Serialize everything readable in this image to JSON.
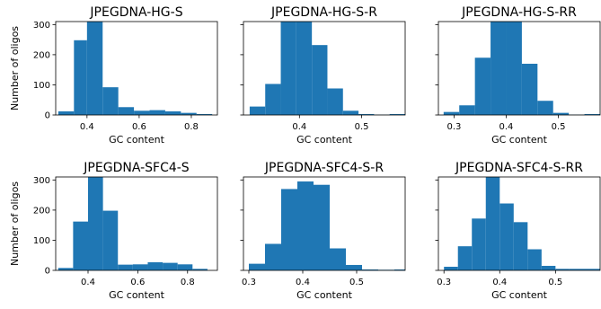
{
  "chart_data": [
    {
      "type": "bar",
      "title": "JPEGDNA-HG-S",
      "xlabel": "GC content",
      "ylabel": "Number of oligos",
      "xlim": [
        0.28,
        0.9
      ],
      "ylim": [
        0,
        310
      ],
      "xticks": [
        0.4,
        0.6,
        0.8
      ],
      "xtick_labels": [
        "0.4",
        "0.6",
        "0.8"
      ],
      "yticks": [
        0,
        100,
        200,
        300
      ],
      "ytick_labels": [
        "0",
        "100",
        "200",
        "300"
      ],
      "bins": [
        {
          "x0": 0.29,
          "x1": 0.35,
          "count": 12
        },
        {
          "x0": 0.35,
          "x1": 0.4,
          "count": 248
        },
        {
          "x0": 0.4,
          "x1": 0.46,
          "count": 330
        },
        {
          "x0": 0.46,
          "x1": 0.52,
          "count": 92
        },
        {
          "x0": 0.52,
          "x1": 0.58,
          "count": 26
        },
        {
          "x0": 0.58,
          "x1": 0.64,
          "count": 14
        },
        {
          "x0": 0.64,
          "x1": 0.7,
          "count": 16
        },
        {
          "x0": 0.7,
          "x1": 0.76,
          "count": 12
        },
        {
          "x0": 0.76,
          "x1": 0.82,
          "count": 7
        },
        {
          "x0": 0.82,
          "x1": 0.88,
          "count": 3
        }
      ]
    },
    {
      "type": "bar",
      "title": "JPEGDNA-HG-S-R",
      "xlabel": "GC content",
      "ylabel": "",
      "xlim": [
        0.31,
        0.57
      ],
      "ylim": [
        0,
        310
      ],
      "xticks": [
        0.4,
        0.5
      ],
      "xtick_labels": [
        "0.4",
        "0.5"
      ],
      "yticks": [
        0,
        100,
        200,
        300
      ],
      "ytick_labels": [
        "",
        "",
        "",
        ""
      ],
      "bins": [
        {
          "x0": 0.32,
          "x1": 0.345,
          "count": 28
        },
        {
          "x0": 0.345,
          "x1": 0.37,
          "count": 103
        },
        {
          "x0": 0.37,
          "x1": 0.395,
          "count": 330
        },
        {
          "x0": 0.395,
          "x1": 0.42,
          "count": 330
        },
        {
          "x0": 0.42,
          "x1": 0.445,
          "count": 232
        },
        {
          "x0": 0.445,
          "x1": 0.47,
          "count": 88
        },
        {
          "x0": 0.47,
          "x1": 0.495,
          "count": 14
        },
        {
          "x0": 0.495,
          "x1": 0.52,
          "count": 3
        },
        {
          "x0": 0.52,
          "x1": 0.545,
          "count": 1
        },
        {
          "x0": 0.545,
          "x1": 0.57,
          "count": 3
        }
      ]
    },
    {
      "type": "bar",
      "title": "JPEGDNA-HG-S-RR",
      "xlabel": "GC content",
      "ylabel": "",
      "xlim": [
        0.27,
        0.58
      ],
      "ylim": [
        0,
        310
      ],
      "xticks": [
        0.3,
        0.4,
        0.5
      ],
      "xtick_labels": [
        "0.3",
        "0.4",
        "0.5"
      ],
      "yticks": [
        0,
        100,
        200,
        300
      ],
      "ytick_labels": [
        "",
        "",
        "",
        ""
      ],
      "bins": [
        {
          "x0": 0.28,
          "x1": 0.31,
          "count": 10
        },
        {
          "x0": 0.31,
          "x1": 0.34,
          "count": 32
        },
        {
          "x0": 0.34,
          "x1": 0.37,
          "count": 190
        },
        {
          "x0": 0.37,
          "x1": 0.4,
          "count": 330
        },
        {
          "x0": 0.4,
          "x1": 0.43,
          "count": 330
        },
        {
          "x0": 0.43,
          "x1": 0.46,
          "count": 170
        },
        {
          "x0": 0.46,
          "x1": 0.49,
          "count": 47
        },
        {
          "x0": 0.49,
          "x1": 0.52,
          "count": 7
        },
        {
          "x0": 0.52,
          "x1": 0.55,
          "count": 1
        },
        {
          "x0": 0.55,
          "x1": 0.58,
          "count": 3
        }
      ]
    },
    {
      "type": "bar",
      "title": "JPEGDNA-SFC4-S",
      "xlabel": "GC content",
      "ylabel": "Number of oligos",
      "xlim": [
        0.27,
        0.92
      ],
      "ylim": [
        0,
        310
      ],
      "xticks": [
        0.4,
        0.6,
        0.8
      ],
      "xtick_labels": [
        "0.4",
        "0.6",
        "0.8"
      ],
      "yticks": [
        0,
        100,
        200,
        300
      ],
      "ytick_labels": [
        "0",
        "100",
        "200",
        "300"
      ],
      "bins": [
        {
          "x0": 0.28,
          "x1": 0.34,
          "count": 8
        },
        {
          "x0": 0.34,
          "x1": 0.4,
          "count": 162
        },
        {
          "x0": 0.4,
          "x1": 0.46,
          "count": 330
        },
        {
          "x0": 0.46,
          "x1": 0.52,
          "count": 198
        },
        {
          "x0": 0.52,
          "x1": 0.58,
          "count": 19
        },
        {
          "x0": 0.58,
          "x1": 0.64,
          "count": 20
        },
        {
          "x0": 0.64,
          "x1": 0.7,
          "count": 27
        },
        {
          "x0": 0.7,
          "x1": 0.76,
          "count": 25
        },
        {
          "x0": 0.76,
          "x1": 0.82,
          "count": 20
        },
        {
          "x0": 0.82,
          "x1": 0.88,
          "count": 5
        }
      ]
    },
    {
      "type": "bar",
      "title": "JPEGDNA-SFC4-S-R",
      "xlabel": "GC content",
      "ylabel": "",
      "xlim": [
        0.29,
        0.59
      ],
      "ylim": [
        0,
        310
      ],
      "xticks": [
        0.3,
        0.4,
        0.5
      ],
      "xtick_labels": [
        "0.3",
        "0.4",
        "0.5"
      ],
      "yticks": [
        0,
        100,
        200,
        300
      ],
      "ytick_labels": [
        "",
        "",
        "",
        ""
      ],
      "bins": [
        {
          "x0": 0.3,
          "x1": 0.33,
          "count": 22
        },
        {
          "x0": 0.33,
          "x1": 0.36,
          "count": 88
        },
        {
          "x0": 0.36,
          "x1": 0.39,
          "count": 270
        },
        {
          "x0": 0.39,
          "x1": 0.42,
          "count": 295
        },
        {
          "x0": 0.42,
          "x1": 0.45,
          "count": 284
        },
        {
          "x0": 0.45,
          "x1": 0.48,
          "count": 73
        },
        {
          "x0": 0.48,
          "x1": 0.51,
          "count": 18
        },
        {
          "x0": 0.51,
          "x1": 0.54,
          "count": 3
        },
        {
          "x0": 0.54,
          "x1": 0.57,
          "count": 2
        },
        {
          "x0": 0.57,
          "x1": 0.59,
          "count": 3
        }
      ]
    },
    {
      "type": "bar",
      "title": "JPEGDNA-SFC4-S-RR",
      "xlabel": "GC content",
      "ylabel": "",
      "xlim": [
        0.29,
        0.58
      ],
      "ylim": [
        0,
        310
      ],
      "xticks": [
        0.3,
        0.4,
        0.5
      ],
      "xtick_labels": [
        "0.3",
        "0.4",
        "0.5"
      ],
      "yticks": [
        0,
        100,
        200,
        300
      ],
      "ytick_labels": [
        "",
        "",
        "",
        ""
      ],
      "bins": [
        {
          "x0": 0.3,
          "x1": 0.325,
          "count": 12
        },
        {
          "x0": 0.325,
          "x1": 0.35,
          "count": 80
        },
        {
          "x0": 0.35,
          "x1": 0.375,
          "count": 172
        },
        {
          "x0": 0.375,
          "x1": 0.4,
          "count": 330
        },
        {
          "x0": 0.4,
          "x1": 0.425,
          "count": 222
        },
        {
          "x0": 0.425,
          "x1": 0.45,
          "count": 160
        },
        {
          "x0": 0.45,
          "x1": 0.475,
          "count": 70
        },
        {
          "x0": 0.475,
          "x1": 0.5,
          "count": 15
        },
        {
          "x0": 0.5,
          "x1": 0.525,
          "count": 5
        },
        {
          "x0": 0.525,
          "x1": 0.58,
          "count": 5
        }
      ]
    }
  ],
  "colors": {
    "bar": "#1f77b4",
    "axis": "#000000",
    "background": "#ffffff"
  }
}
